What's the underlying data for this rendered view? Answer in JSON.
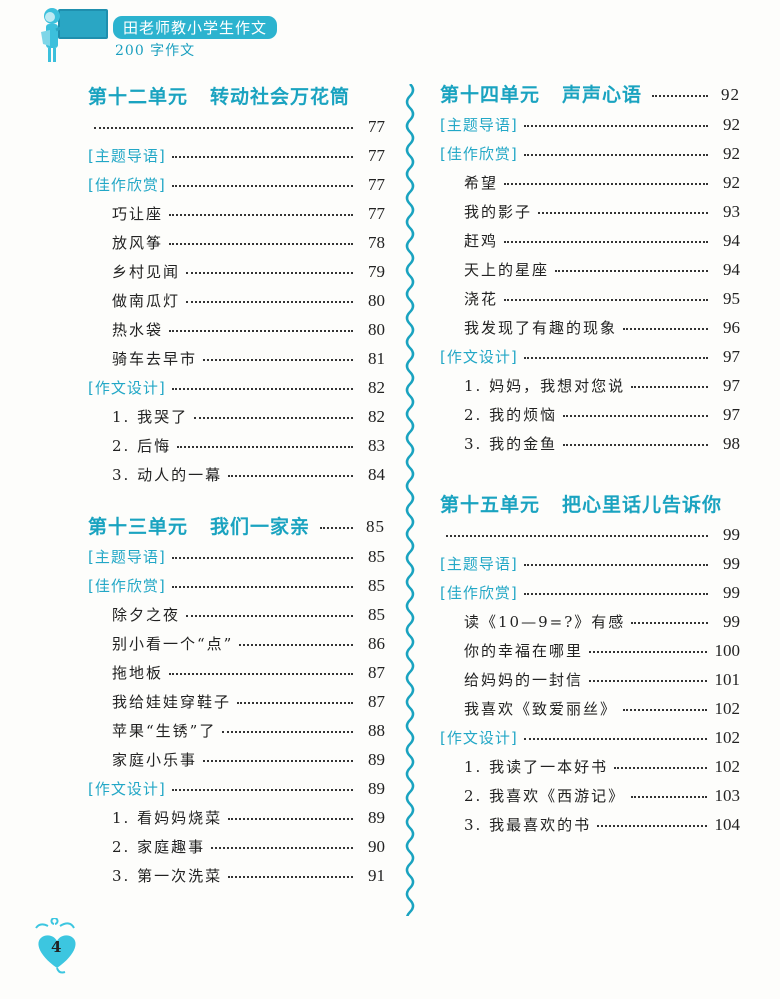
{
  "header": {
    "series_title": "田老师教小学生作文",
    "subtitle": "200 字作文",
    "icon": "teacher-at-blackboard-illustration"
  },
  "accent_color": "#1aa3c0",
  "page_number": "4",
  "left_column": [
    {
      "unit": "第十二单元",
      "name": "转动社会万花筒",
      "page": "77",
      "title_wraps": true,
      "entries": [
        {
          "type": "tag",
          "label": "[主题导语]",
          "page": "77"
        },
        {
          "type": "tag",
          "label": "[佳作欣赏]",
          "page": "77"
        },
        {
          "type": "item",
          "label": "巧让座",
          "page": "77"
        },
        {
          "type": "item",
          "label": "放风筝",
          "page": "78"
        },
        {
          "type": "item",
          "label": "乡村见闻",
          "page": "79"
        },
        {
          "type": "item",
          "label": "做南瓜灯",
          "page": "80"
        },
        {
          "type": "item",
          "label": "热水袋",
          "page": "80"
        },
        {
          "type": "item",
          "label": "骑车去早市",
          "page": "81"
        },
        {
          "type": "tag",
          "label": "[作文设计]",
          "page": "82"
        },
        {
          "type": "item",
          "label": "1. 我哭了",
          "page": "82"
        },
        {
          "type": "item",
          "label": "2. 后悔",
          "page": "83"
        },
        {
          "type": "item",
          "label": "3. 动人的一幕",
          "page": "84"
        }
      ]
    },
    {
      "unit": "第十三单元",
      "name": "我们一家亲",
      "page": "85",
      "title_wraps": false,
      "entries": [
        {
          "type": "tag",
          "label": "[主题导语]",
          "page": "85"
        },
        {
          "type": "tag",
          "label": "[佳作欣赏]",
          "page": "85"
        },
        {
          "type": "item",
          "label": "除夕之夜",
          "page": "85"
        },
        {
          "type": "item",
          "label": "别小看一个“点”",
          "page": "86"
        },
        {
          "type": "item",
          "label": "拖地板",
          "page": "87"
        },
        {
          "type": "item",
          "label": "我给娃娃穿鞋子",
          "page": "87"
        },
        {
          "type": "item",
          "label": "苹果“生锈”了",
          "page": "88"
        },
        {
          "type": "item",
          "label": "家庭小乐事",
          "page": "89"
        },
        {
          "type": "tag",
          "label": "[作文设计]",
          "page": "89"
        },
        {
          "type": "item",
          "label": "1. 看妈妈烧菜",
          "page": "89"
        },
        {
          "type": "item",
          "label": "2. 家庭趣事",
          "page": "90"
        },
        {
          "type": "item",
          "label": "3. 第一次洗菜",
          "page": "91"
        }
      ]
    }
  ],
  "right_column": [
    {
      "unit": "第十四单元",
      "name": "声声心语",
      "page": "92",
      "title_wraps": false,
      "entries": [
        {
          "type": "tag",
          "label": "[主题导语]",
          "page": "92"
        },
        {
          "type": "tag",
          "label": "[佳作欣赏]",
          "page": "92"
        },
        {
          "type": "item",
          "label": "希望",
          "page": "92"
        },
        {
          "type": "item",
          "label": "我的影子",
          "page": "93"
        },
        {
          "type": "item",
          "label": "赶鸡",
          "page": "94"
        },
        {
          "type": "item",
          "label": "天上的星座",
          "page": "94"
        },
        {
          "type": "item",
          "label": "浇花",
          "page": "95"
        },
        {
          "type": "item",
          "label": "我发现了有趣的现象",
          "page": "96"
        },
        {
          "type": "tag",
          "label": "[作文设计]",
          "page": "97"
        },
        {
          "type": "item",
          "label": "1. 妈妈，我想对您说",
          "page": "97"
        },
        {
          "type": "item",
          "label": "2. 我的烦恼",
          "page": "97"
        },
        {
          "type": "item",
          "label": "3. 我的金鱼",
          "page": "98"
        }
      ]
    },
    {
      "unit": "第十五单元",
      "name": "把心里话儿告诉你",
      "page": "99",
      "title_wraps": true,
      "entries": [
        {
          "type": "tag",
          "label": "[主题导语]",
          "page": "99"
        },
        {
          "type": "tag",
          "label": "[佳作欣赏]",
          "page": "99"
        },
        {
          "type": "item",
          "label": "读《10—9=?》有感",
          "page": "99"
        },
        {
          "type": "item",
          "label": "你的幸福在哪里",
          "page": "100"
        },
        {
          "type": "item",
          "label": "给妈妈的一封信",
          "page": "101"
        },
        {
          "type": "item",
          "label": "我喜欢《致爱丽丝》",
          "page": "102"
        },
        {
          "type": "tag",
          "label": "[作文设计]",
          "page": "102"
        },
        {
          "type": "item",
          "label": "1. 我读了一本好书",
          "page": "102"
        },
        {
          "type": "item",
          "label": "2. 我喜欢《西游记》",
          "page": "103"
        },
        {
          "type": "item",
          "label": "3. 我最喜欢的书",
          "page": "104"
        }
      ]
    }
  ]
}
